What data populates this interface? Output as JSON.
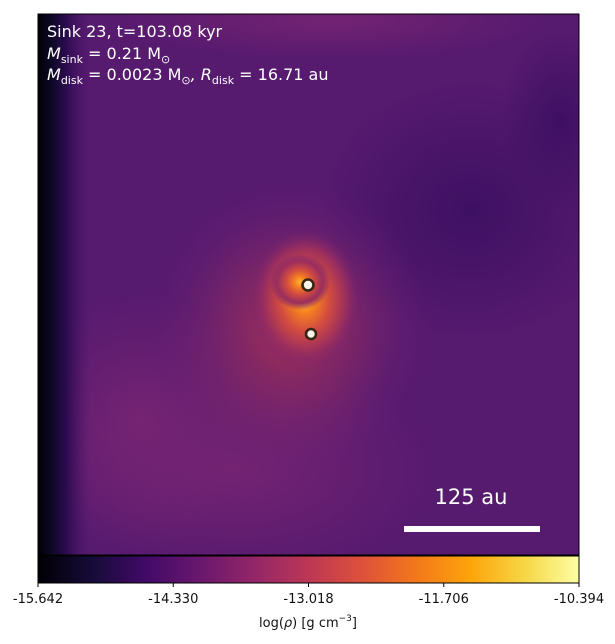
{
  "annotation": {
    "line1": "Sink 23, t=103.08 kyr",
    "line2_prefix": "M",
    "line2_sub": "sink",
    "line2_rest": " = 0.21 M",
    "line2_sun_sub": "⊙",
    "line3_prefix": "M",
    "line3_sub": "disk",
    "line3_mid": " = 0.0023 M",
    "line3_sun_sub": "⊙",
    "line3_sep": ", R",
    "line3_rsub": "disk",
    "line3_rest": " = 16.71 au"
  },
  "scale_bar": {
    "label": "125 au",
    "length_au": 125
  },
  "sinks": [
    {
      "name": "sink-primary"
    },
    {
      "name": "sink-secondary"
    }
  ],
  "colorbar": {
    "label_prefix": "log(",
    "label_rho": "ρ",
    "label_mid": ") [g cm",
    "label_exp": "−3",
    "label_end": "]",
    "ticks": [
      "-15.642",
      "-14.330",
      "-13.018",
      "-11.706",
      "-10.394"
    ],
    "vmin": -15.642,
    "vmax": -10.394,
    "colormap": "inferno-like"
  },
  "colors": {
    "bg_dark": "#000004",
    "bg_purple": "#4a1468",
    "bg_mid": "#6b1f78",
    "glow_orange": "#f6821f",
    "sink_fill": "#f7f3e6",
    "sink_ring": "#3a2416",
    "text": "#ffffff",
    "scalebar": "#ffffff"
  }
}
